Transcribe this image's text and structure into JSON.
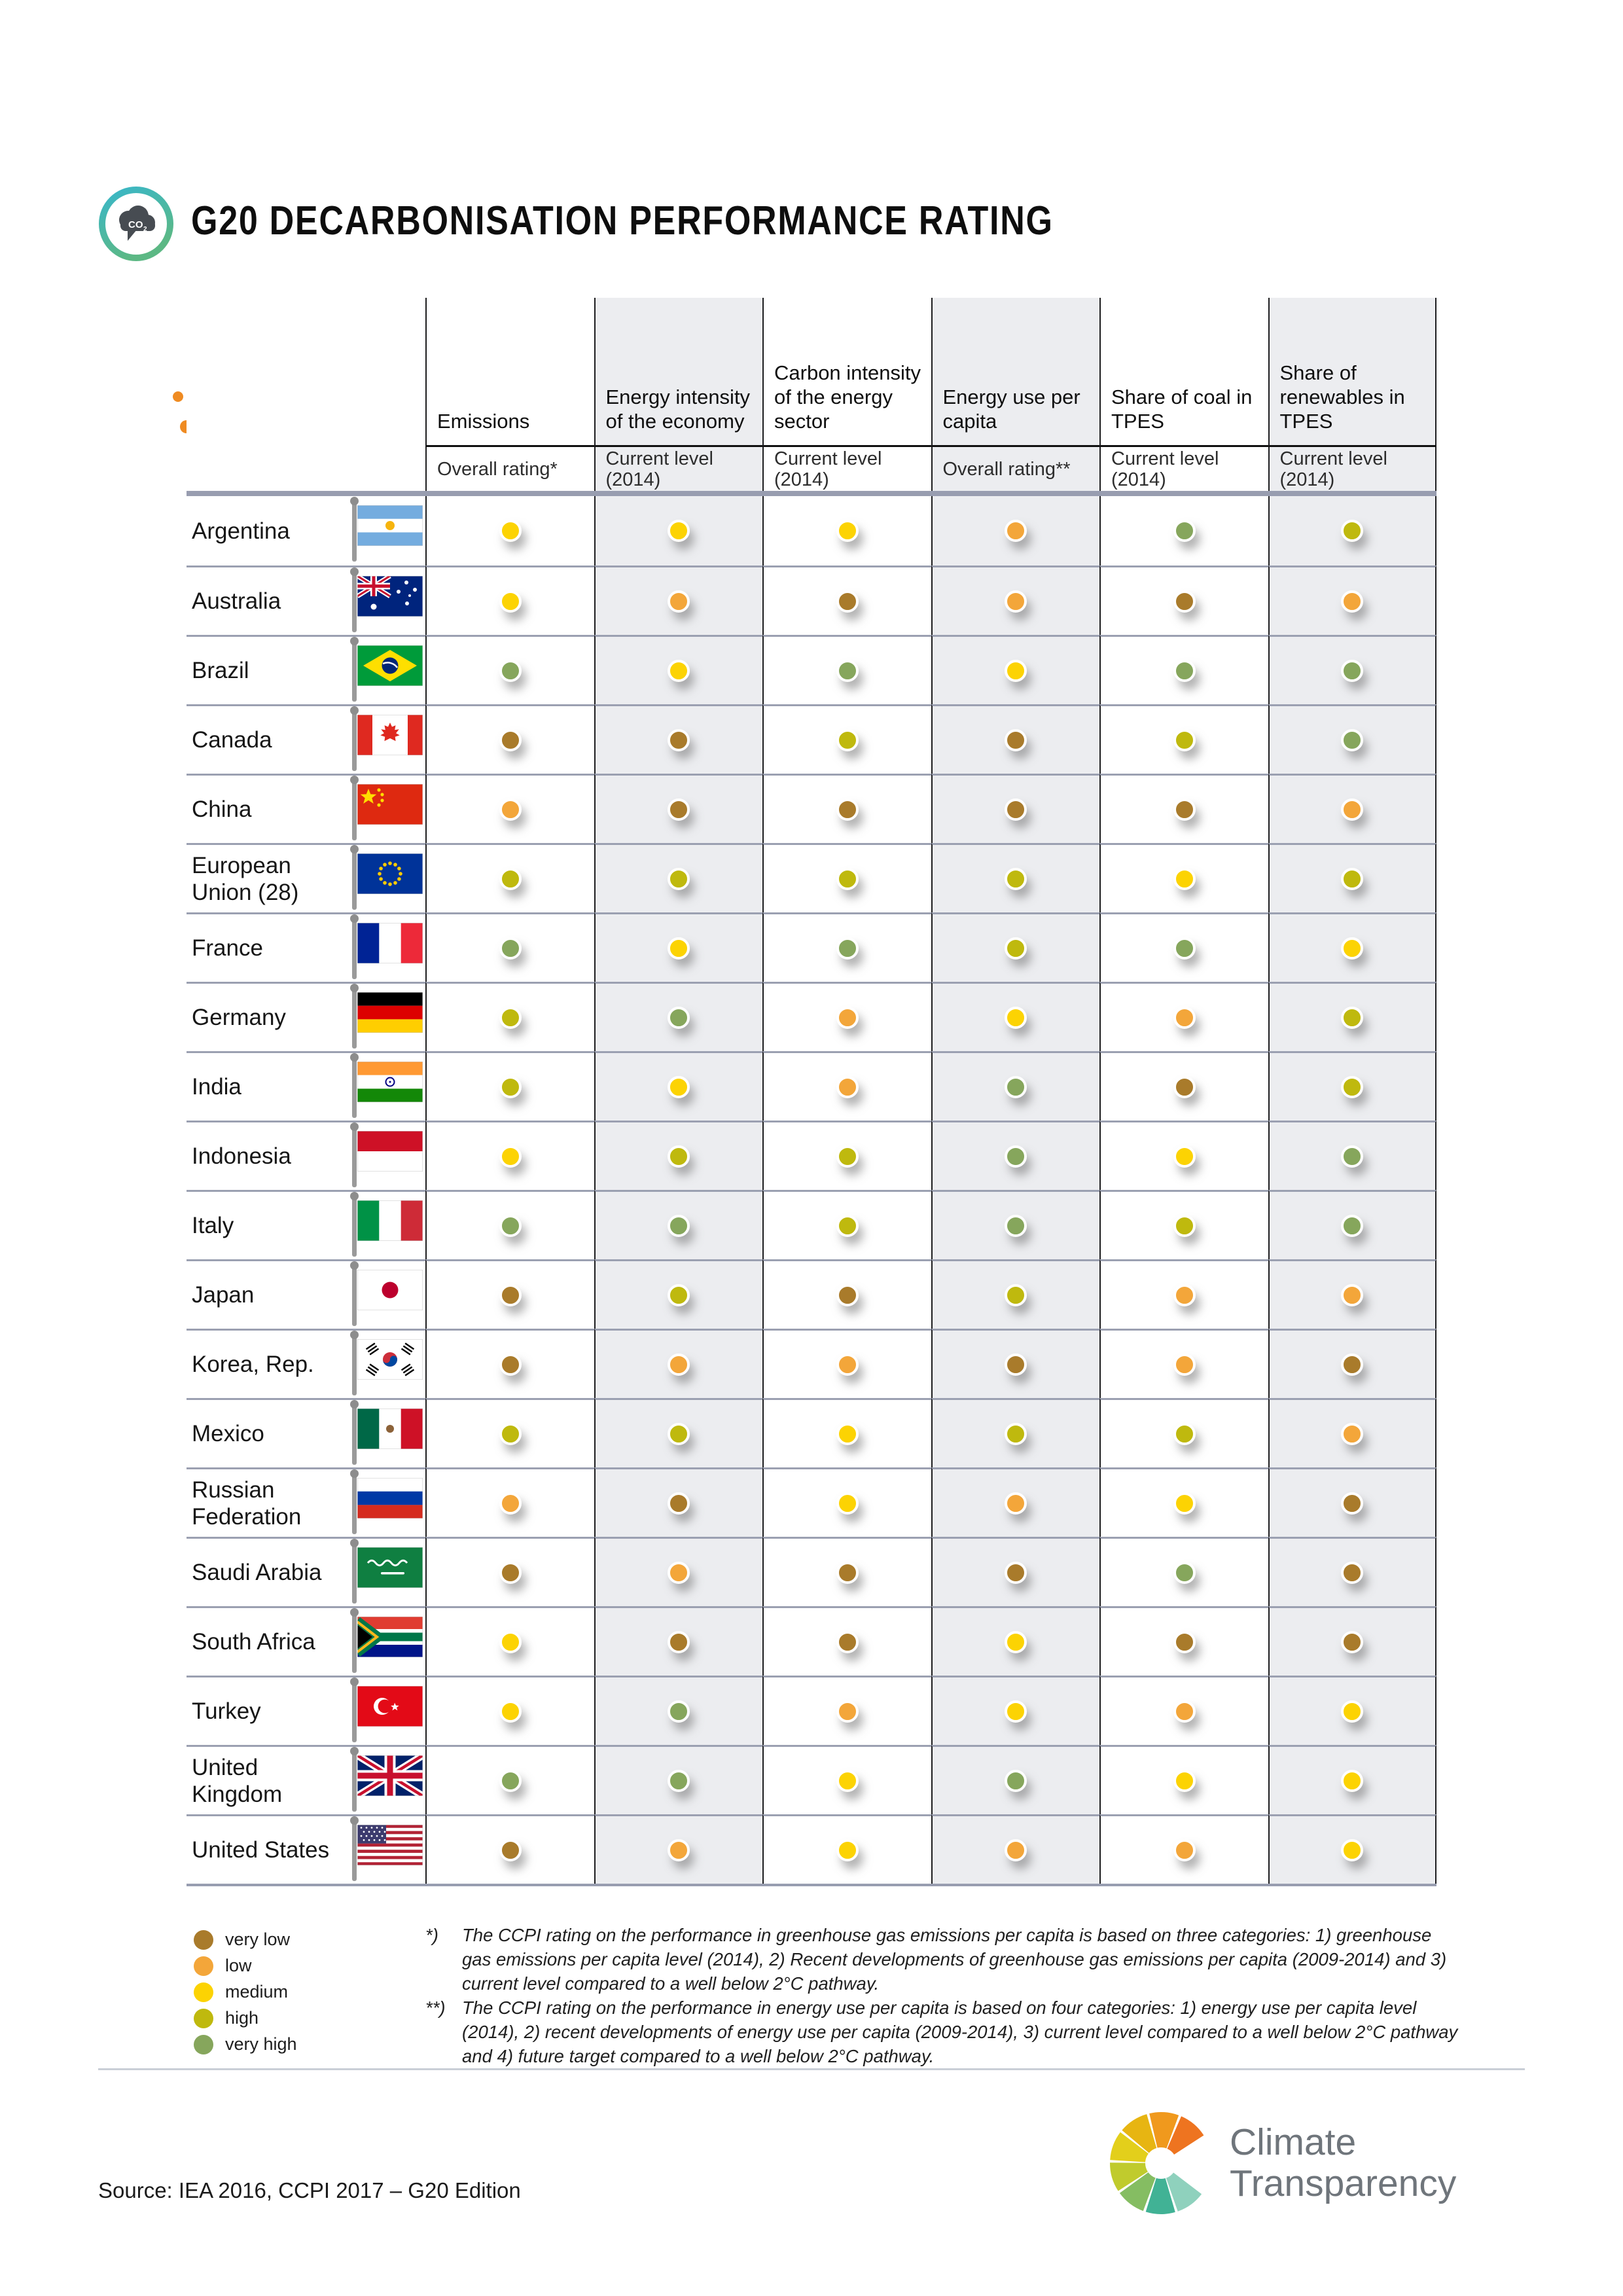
{
  "title": "G20 DECARBONISATION PERFORMANCE RATING",
  "co2_icon": {
    "label": "CO",
    "sub": "2"
  },
  "chart_data": {
    "type": "table",
    "title": "G20 DECARBONISATION PERFORMANCE RATING",
    "rating_scale": [
      "very low",
      "low",
      "medium",
      "high",
      "very high"
    ],
    "columns": [
      {
        "label": "Emissions",
        "sub": "Overall rating*"
      },
      {
        "label": "Energy intensity of the economy",
        "sub": "Current level (2014)"
      },
      {
        "label": "Carbon intensity of the energy sector",
        "sub": "Current level (2014)"
      },
      {
        "label": "Energy use per capita",
        "sub": "Overall rating**"
      },
      {
        "label": "Share of coal in TPES",
        "sub": "Current level (2014)"
      },
      {
        "label": "Share of renewables in TPES",
        "sub": "Current level (2014)"
      }
    ],
    "rows": [
      {
        "country": "Argentina",
        "flag": "ar",
        "values": [
          "medium",
          "medium",
          "medium",
          "low",
          "very high",
          "high"
        ]
      },
      {
        "country": "Australia",
        "flag": "au",
        "values": [
          "medium",
          "low",
          "very low",
          "low",
          "very low",
          "low"
        ]
      },
      {
        "country": "Brazil",
        "flag": "br",
        "values": [
          "very high",
          "medium",
          "very high",
          "medium",
          "very high",
          "very high"
        ]
      },
      {
        "country": "Canada",
        "flag": "ca",
        "values": [
          "very low",
          "very low",
          "high",
          "very low",
          "high",
          "very high"
        ]
      },
      {
        "country": "China",
        "flag": "cn",
        "values": [
          "low",
          "very low",
          "very low",
          "very low",
          "very low",
          "low"
        ]
      },
      {
        "country": "European Union (28)",
        "flag": "eu",
        "values": [
          "high",
          "high",
          "high",
          "high",
          "medium",
          "high"
        ]
      },
      {
        "country": "France",
        "flag": "fr",
        "values": [
          "very high",
          "medium",
          "very high",
          "high",
          "very high",
          "medium"
        ]
      },
      {
        "country": "Germany",
        "flag": "de",
        "values": [
          "high",
          "very high",
          "low",
          "medium",
          "low",
          "high"
        ]
      },
      {
        "country": "India",
        "flag": "in",
        "values": [
          "high",
          "medium",
          "low",
          "very high",
          "very low",
          "high"
        ]
      },
      {
        "country": "Indonesia",
        "flag": "id",
        "values": [
          "medium",
          "high",
          "high",
          "very high",
          "medium",
          "very high"
        ]
      },
      {
        "country": "Italy",
        "flag": "it",
        "values": [
          "very high",
          "very high",
          "high",
          "very high",
          "high",
          "very high"
        ]
      },
      {
        "country": "Japan",
        "flag": "jp",
        "values": [
          "very low",
          "high",
          "very low",
          "high",
          "low",
          "low"
        ]
      },
      {
        "country": "Korea, Rep.",
        "flag": "kr",
        "values": [
          "very low",
          "low",
          "low",
          "very low",
          "low",
          "very low"
        ]
      },
      {
        "country": "Mexico",
        "flag": "mx",
        "values": [
          "high",
          "high",
          "medium",
          "high",
          "high",
          "low"
        ]
      },
      {
        "country": "Russian Federation",
        "flag": "ru",
        "values": [
          "low",
          "very low",
          "medium",
          "low",
          "medium",
          "very low"
        ]
      },
      {
        "country": "Saudi Arabia",
        "flag": "sa",
        "values": [
          "very low",
          "low",
          "very low",
          "very low",
          "very high",
          "very low"
        ]
      },
      {
        "country": "South Africa",
        "flag": "za",
        "values": [
          "medium",
          "very low",
          "very low",
          "medium",
          "very low",
          "very low"
        ]
      },
      {
        "country": "Turkey",
        "flag": "tr",
        "values": [
          "medium",
          "very high",
          "low",
          "medium",
          "low",
          "medium"
        ]
      },
      {
        "country": "United Kingdom",
        "flag": "gb",
        "values": [
          "very high",
          "very high",
          "medium",
          "very high",
          "medium",
          "medium"
        ]
      },
      {
        "country": "United States",
        "flag": "us",
        "values": [
          "very low",
          "low",
          "medium",
          "low",
          "low",
          "medium"
        ]
      }
    ]
  },
  "rating_colors": {
    "very low": "#a97b2b",
    "low": "#f3a63a",
    "medium": "#fcd303",
    "high": "#bfb90e",
    "very high": "#86a65c"
  },
  "legend": [
    {
      "key": "very low",
      "label": "very low"
    },
    {
      "key": "low",
      "label": "low"
    },
    {
      "key": "medium",
      "label": "medium"
    },
    {
      "key": "high",
      "label": "high"
    },
    {
      "key": "very high",
      "label": "very high"
    }
  ],
  "footnotes": [
    {
      "marker": "*)",
      "text": "The CCPI rating on the performance in greenhouse gas emissions per capita is based on three categories: 1) greenhouse gas emissions per capita level (2014), 2) Recent developments of greenhouse gas emissions per capita (2009-2014) and 3) current level compared to a well below 2°C pathway."
    },
    {
      "marker": "**)",
      "text": "The CCPI rating on the performance in energy use per capita is based on four categories: 1) energy use per capita level (2014), 2) recent developments of energy use per capita (2009-2014), 3) current level compared to a well below 2°C pathway and 4) future target compared to a well below 2°C pathway."
    }
  ],
  "source": "Source: IEA 2016, CCPI 2017 – G20 Edition",
  "brand": {
    "line1": "Climate",
    "line2": "Transparency"
  }
}
